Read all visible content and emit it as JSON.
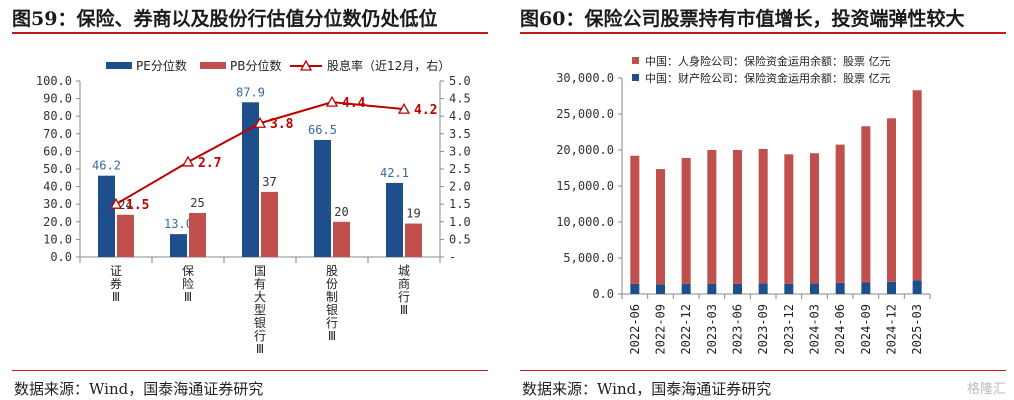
{
  "left_figure": {
    "title": "图59：保险、券商以及股份行估值分位数仍处低位",
    "source": "数据来源：Wind，国泰海通证券研究"
  },
  "right_figure": {
    "title": "图60：保险公司股票持有市值增长，投资端弹性较大",
    "source": "数据来源：Wind，国泰海通证券研究"
  },
  "watermark": "格隆汇",
  "colors": {
    "blue": "#1f4e8c",
    "red": "#c0504d",
    "line": "#c00000",
    "rule": "#c8161d"
  },
  "chart_data": [
    {
      "type": "bar",
      "categories": [
        "证券Ⅲ",
        "保险Ⅲ",
        "国有大型银行Ⅲ",
        "股份制银行Ⅲ",
        "城商行Ⅲ"
      ],
      "series": [
        {
          "name": "PE分位数",
          "type": "bar",
          "axis": "left",
          "values": [
            46.2,
            13.0,
            87.9,
            66.5,
            42.1
          ],
          "labels": [
            "46.2",
            "13.0",
            "87.9",
            "66.5",
            "42.1"
          ]
        },
        {
          "name": "PB分位数",
          "type": "bar",
          "axis": "left",
          "values": [
            24,
            25,
            37,
            20,
            19
          ],
          "labels": [
            "24",
            "25",
            "37",
            "20",
            "19"
          ]
        },
        {
          "name": "股息率（近12月，右）",
          "type": "line",
          "axis": "right",
          "values": [
            1.5,
            2.7,
            3.8,
            4.4,
            4.2
          ],
          "labels": [
            "1.5",
            "2.7",
            "3.8",
            "4.4",
            "4.2"
          ]
        }
      ],
      "ylim": [
        0,
        100
      ],
      "y_ticks": [
        "0.0",
        "10.0",
        "20.0",
        "30.0",
        "40.0",
        "50.0",
        "60.0",
        "70.0",
        "80.0",
        "90.0",
        "100.0"
      ],
      "y2lim": [
        0,
        5
      ],
      "y2_ticks": [
        "-",
        "0.5",
        "1.0",
        "1.5",
        "2.0",
        "2.5",
        "3.0",
        "3.5",
        "4.0",
        "4.5",
        "5.0"
      ],
      "legend": "top",
      "grid": false
    },
    {
      "type": "bar",
      "stacked": true,
      "categories": [
        "2022-06",
        "2022-09",
        "2022-12",
        "2023-03",
        "2023-06",
        "2023-09",
        "2023-12",
        "2024-03",
        "2024-06",
        "2024-09",
        "2024-12",
        "2025-03"
      ],
      "series": [
        {
          "name": "中国：财产险公司：保险资金运用余额：股票  亿元",
          "values": [
            1400,
            1350,
            1400,
            1400,
            1400,
            1450,
            1400,
            1450,
            1550,
            1600,
            1700,
            1900
          ]
        },
        {
          "name": "中国：人身险公司：保险资金运用余额：股票  亿元",
          "values": [
            17800,
            16000,
            17500,
            18600,
            18600,
            18700,
            18000,
            18100,
            19200,
            21700,
            22700,
            26400
          ]
        }
      ],
      "ylim": [
        0,
        30000
      ],
      "y_ticks": [
        "0.0",
        "5,000.0",
        "10,000.0",
        "15,000.0",
        "20,000.0",
        "25,000.0",
        "30,000.0"
      ],
      "legend": "top-left",
      "grid": false
    }
  ]
}
